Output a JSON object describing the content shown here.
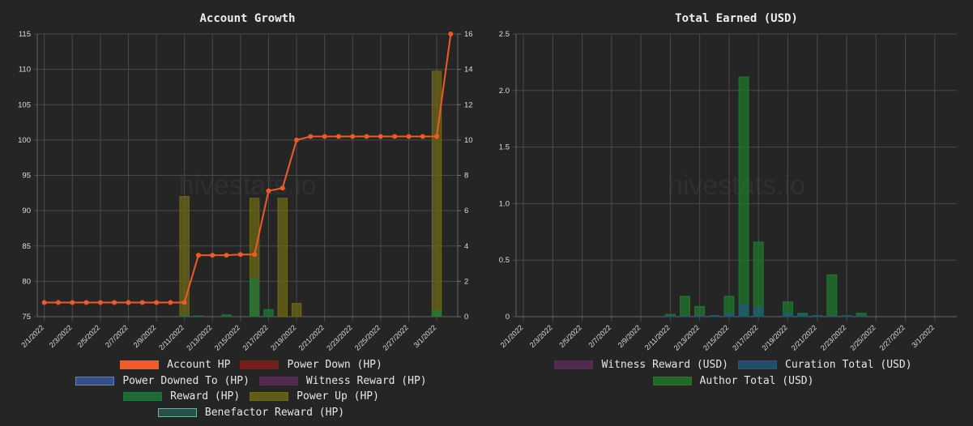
{
  "watermark": "hivestats.io",
  "chart_data": [
    {
      "type": "bar",
      "title": "Account Growth",
      "x": [
        "2/1/2022",
        "2/2/2022",
        "2/3/2022",
        "2/4/2022",
        "2/5/2022",
        "2/6/2022",
        "2/7/2022",
        "2/8/2022",
        "2/9/2022",
        "2/10/2022",
        "2/11/2022",
        "2/12/2022",
        "2/13/2022",
        "2/14/2022",
        "2/15/2022",
        "2/16/2022",
        "2/17/2022",
        "2/18/2022",
        "2/19/2022",
        "2/20/2022",
        "2/21/2022",
        "2/22/2022",
        "2/23/2022",
        "2/24/2022",
        "2/25/2022",
        "2/26/2022",
        "2/27/2022",
        "2/28/2022",
        "3/1/2022",
        "3/2/2022"
      ],
      "x_tick_labels": [
        "2/1/2022",
        "2/3/2022",
        "2/5/2022",
        "2/7/2022",
        "2/9/2022",
        "2/11/2022",
        "2/13/2022",
        "2/15/2022",
        "2/17/2022",
        "2/19/2022",
        "2/21/2022",
        "2/23/2022",
        "2/25/2022",
        "2/27/2022",
        "3/1/2022"
      ],
      "y_left": {
        "range": [
          75,
          115
        ],
        "ticks": [
          "75",
          "80",
          "85",
          "90",
          "95",
          "100",
          "105",
          "110",
          "115"
        ]
      },
      "y_right": {
        "range": [
          0,
          16
        ],
        "ticks": [
          "0",
          "2",
          "4",
          "6",
          "8",
          "10",
          "12",
          "14",
          "16"
        ]
      },
      "grid": true,
      "legend_position": "bottom",
      "series": [
        {
          "name": "Account HP",
          "kind": "line",
          "axis": "left",
          "color": "#f05a28",
          "values": [
            77.0,
            77.0,
            77.0,
            77.0,
            77.0,
            77.0,
            77.0,
            77.0,
            77.0,
            77.0,
            77.0,
            83.7,
            83.7,
            83.7,
            83.8,
            83.8,
            92.8,
            93.2,
            100.0,
            100.5,
            100.5,
            100.5,
            100.5,
            100.5,
            100.5,
            100.5,
            100.5,
            100.5,
            100.5,
            115.0
          ]
        },
        {
          "name": "Power Down (HP)",
          "kind": "bar",
          "axis": "right",
          "color": "#8b1a1a",
          "values": [
            0,
            0,
            0,
            0,
            0,
            0,
            0,
            0,
            0,
            0,
            0,
            0,
            0,
            0,
            0,
            0,
            0,
            0,
            0,
            0,
            0,
            0,
            0,
            0,
            0,
            0,
            0,
            0,
            0,
            0
          ]
        },
        {
          "name": "Power Downed To (HP)",
          "kind": "bar",
          "axis": "right",
          "color": "#3a5ba0",
          "values": [
            0,
            0,
            0,
            0,
            0,
            0,
            0,
            0,
            0,
            0,
            0,
            0,
            0,
            0,
            0,
            0,
            0,
            0,
            0,
            0,
            0,
            0,
            0,
            0,
            0,
            0,
            0,
            0,
            0,
            0
          ]
        },
        {
          "name": "Witness Reward (HP)",
          "kind": "bar",
          "axis": "right",
          "color": "#5a2a5a",
          "values": [
            0,
            0,
            0,
            0,
            0,
            0,
            0,
            0,
            0,
            0,
            0,
            0,
            0,
            0,
            0,
            0,
            0,
            0,
            0,
            0,
            0,
            0,
            0,
            0,
            0,
            0,
            0,
            0,
            0,
            0
          ]
        },
        {
          "name": "Reward (HP)",
          "kind": "bar",
          "axis": "right",
          "color": "#1e7a3c",
          "values": [
            0,
            0,
            0,
            0,
            0,
            0,
            0,
            0,
            0,
            0,
            0.05,
            0.04,
            0,
            0.1,
            0,
            2.15,
            0.4,
            0,
            0,
            0,
            0,
            0,
            0,
            0,
            0,
            0,
            0,
            0,
            0.35,
            0
          ]
        },
        {
          "name": "Power Up (HP)",
          "kind": "bar",
          "axis": "right",
          "color": "#6e6a14",
          "values": [
            0,
            0,
            0,
            0,
            0,
            0,
            0,
            0,
            0,
            0,
            6.8,
            0,
            0,
            0,
            0,
            6.7,
            0,
            6.7,
            0.75,
            0,
            0,
            0,
            0,
            0,
            0,
            0,
            0,
            0,
            13.9,
            0
          ]
        },
        {
          "name": "Benefactor Reward (HP)",
          "kind": "bar",
          "axis": "right",
          "color": "#2a5a52",
          "values": [
            0,
            0,
            0,
            0,
            0,
            0,
            0,
            0,
            0,
            0,
            0,
            0,
            0,
            0,
            0,
            0,
            0,
            0,
            0,
            0,
            0,
            0,
            0,
            0,
            0,
            0,
            0,
            0,
            0,
            0
          ]
        }
      ]
    },
    {
      "type": "bar",
      "title": "Total Earned (USD)",
      "x": [
        "2/1/2022",
        "2/2/2022",
        "2/3/2022",
        "2/4/2022",
        "2/5/2022",
        "2/6/2022",
        "2/7/2022",
        "2/8/2022",
        "2/9/2022",
        "2/10/2022",
        "2/11/2022",
        "2/12/2022",
        "2/13/2022",
        "2/14/2022",
        "2/15/2022",
        "2/16/2022",
        "2/17/2022",
        "2/18/2022",
        "2/19/2022",
        "2/20/2022",
        "2/21/2022",
        "2/22/2022",
        "2/23/2022",
        "2/24/2022",
        "2/25/2022",
        "2/26/2022",
        "2/27/2022",
        "2/28/2022",
        "3/1/2022",
        "3/2/2022"
      ],
      "x_tick_labels": [
        "2/1/2022",
        "2/3/2022",
        "2/5/2022",
        "2/7/2022",
        "2/9/2022",
        "2/11/2022",
        "2/13/2022",
        "2/15/2022",
        "2/17/2022",
        "2/19/2022",
        "2/21/2022",
        "2/23/2022",
        "2/25/2022",
        "2/27/2022",
        "3/1/2022"
      ],
      "y": {
        "range": [
          0,
          2.5
        ],
        "ticks": [
          "0",
          "0.5",
          "1.0",
          "1.5",
          "2.0",
          "2.5"
        ]
      },
      "grid": true,
      "legend_position": "bottom",
      "series": [
        {
          "name": "Witness Reward (USD)",
          "kind": "bar",
          "color": "#5a2a5a",
          "values": [
            0,
            0,
            0,
            0,
            0,
            0,
            0,
            0,
            0,
            0,
            0,
            0,
            0,
            0,
            0,
            0,
            0,
            0,
            0,
            0,
            0,
            0,
            0,
            0,
            0,
            0,
            0,
            0,
            0,
            0
          ]
        },
        {
          "name": "Curation Total (USD)",
          "kind": "bar",
          "color": "#1e5a78",
          "values": [
            0,
            0,
            0,
            0,
            0,
            0,
            0,
            0,
            0,
            0,
            0.005,
            0.01,
            0.01,
            0.01,
            0.02,
            0.11,
            0.08,
            0,
            0.03,
            0.02,
            0.01,
            0.01,
            0.01,
            0.01,
            0,
            0,
            0,
            0,
            0,
            0
          ]
        },
        {
          "name": "Author Total (USD)",
          "kind": "bar",
          "color": "#1e7a2c",
          "values": [
            0,
            0,
            0,
            0,
            0,
            0,
            0,
            0,
            0,
            0,
            0.02,
            0.18,
            0.09,
            0,
            0.18,
            2.12,
            0.66,
            0,
            0.13,
            0.03,
            0,
            0.37,
            0,
            0.03,
            0,
            0,
            0,
            0,
            0,
            0
          ]
        }
      ]
    }
  ]
}
